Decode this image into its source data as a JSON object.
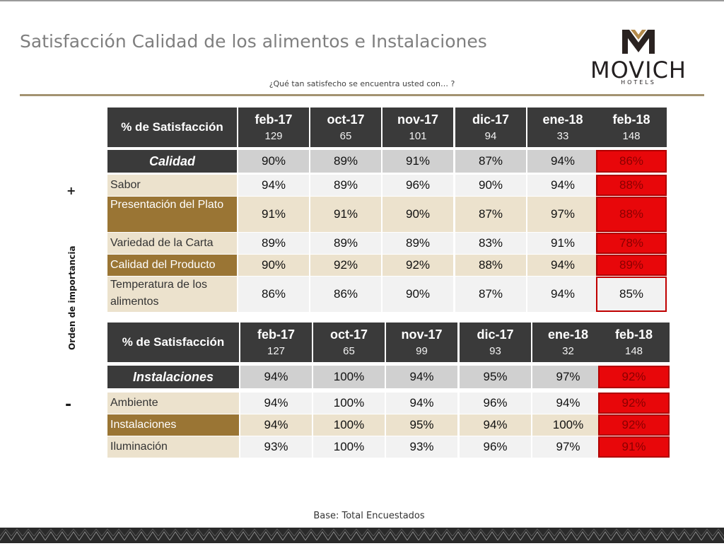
{
  "title": "Satisfacción Calidad de los alimentos e Instalaciones",
  "subtitle": "¿Qué tan satisfecho se encuentra usted con… ?",
  "logo": {
    "brand": "MOVICH",
    "sub": "HOTELS"
  },
  "side": {
    "label": "Orden de importancia",
    "plus": "+",
    "minus": "-"
  },
  "footer": "Base: Total Encuestados",
  "colors": {
    "header": "#3a3a3a",
    "red": "#e8070a",
    "tan": "#ece2cd",
    "brown": "#9a7534",
    "gold_line": "#a39371"
  },
  "table1": {
    "corner": "% de Satisfacción",
    "headers": [
      {
        "month": "feb-17",
        "n": "129"
      },
      {
        "month": "oct-17",
        "n": "65"
      },
      {
        "month": "nov-17",
        "n": "101"
      },
      {
        "month": "dic-17",
        "n": "94"
      },
      {
        "month": "ene-18",
        "n": "33"
      },
      {
        "month": "feb-18",
        "n": "148"
      }
    ],
    "category": {
      "label": "Calidad",
      "values": [
        "90%",
        "89%",
        "91%",
        "87%",
        "94%",
        "86%"
      ]
    },
    "rows": [
      {
        "label": "Sabor",
        "values": [
          "94%",
          "89%",
          "96%",
          "90%",
          "94%",
          "88%"
        ]
      },
      {
        "label": "Presentación del Plato",
        "values": [
          "91%",
          "91%",
          "90%",
          "87%",
          "97%",
          "88%"
        ]
      },
      {
        "label": "Variedad de la Carta",
        "values": [
          "89%",
          "89%",
          "89%",
          "83%",
          "91%",
          "78%"
        ]
      },
      {
        "label": "Calidad del Producto",
        "values": [
          "90%",
          "92%",
          "92%",
          "88%",
          "94%",
          "89%"
        ]
      },
      {
        "label": "Temperatura de los alimentos",
        "values": [
          "86%",
          "86%",
          "90%",
          "87%",
          "94%",
          "85%"
        ]
      }
    ]
  },
  "table2": {
    "corner": "% de Satisfacción",
    "headers": [
      {
        "month": "feb-17",
        "n": "127"
      },
      {
        "month": "oct-17",
        "n": "65"
      },
      {
        "month": "nov-17",
        "n": "99"
      },
      {
        "month": "dic-17",
        "n": "93"
      },
      {
        "month": "ene-18",
        "n": "32"
      },
      {
        "month": "feb-18",
        "n": "148"
      }
    ],
    "category": {
      "label": "Instalaciones",
      "values": [
        "94%",
        "100%",
        "94%",
        "95%",
        "97%",
        "92%"
      ]
    },
    "rows": [
      {
        "label": "Ambiente",
        "values": [
          "94%",
          "100%",
          "94%",
          "96%",
          "94%",
          "92%"
        ]
      },
      {
        "label": "Instalaciones",
        "values": [
          "94%",
          "100%",
          "95%",
          "94%",
          "100%",
          "92%"
        ]
      },
      {
        "label": "Iluminación",
        "values": [
          "93%",
          "100%",
          "93%",
          "96%",
          "97%",
          "91%"
        ]
      }
    ]
  }
}
